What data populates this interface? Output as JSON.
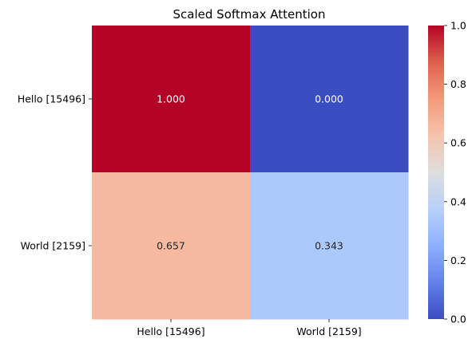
{
  "chart_data": {
    "type": "heatmap",
    "title": "Scaled Softmax Attention",
    "x_categories": [
      "Hello [15496]",
      "World [2159]"
    ],
    "y_categories": [
      "Hello [15496]",
      "World [2159]"
    ],
    "values": [
      [
        1.0,
        0.0
      ],
      [
        0.657,
        0.343
      ]
    ],
    "cell_labels": [
      [
        "1.000",
        "0.000"
      ],
      [
        "0.657",
        "0.343"
      ]
    ],
    "colormap": "coolwarm",
    "vmin": 0.0,
    "vmax": 1.0,
    "colorbar_ticks": [
      "0.0",
      "0.2",
      "0.4",
      "0.6",
      "0.8",
      "1.0"
    ],
    "colorbar_tick_values": [
      0.0,
      0.2,
      0.4,
      0.6,
      0.8,
      1.0
    ],
    "colors": {
      "low": "#3b4cc0",
      "mid": "#dddddd",
      "high": "#b40426",
      "text_dark": "#262626",
      "text_light": "#ffffff"
    }
  }
}
